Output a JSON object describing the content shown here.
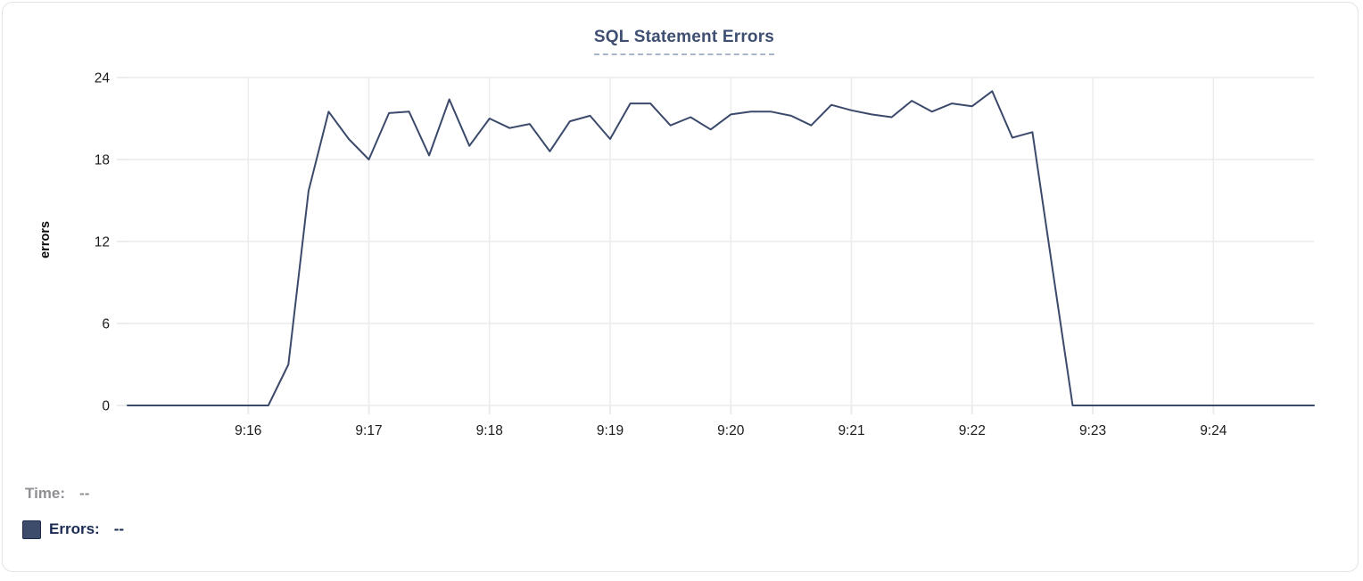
{
  "card": {
    "title_underline_color": "#a9b5c9",
    "title_color": "#3e4f71",
    "border_color": "#e3e3e6"
  },
  "legend": {
    "time_label": "Time:",
    "time_value": "--",
    "time_color": "#8e8e93",
    "errors_label": "Errors:",
    "errors_value": "--",
    "errors_color": "#1b2a52",
    "swatch_color": "#3d4c6a"
  },
  "chart_data": {
    "type": "line",
    "title": "SQL Statement Errors",
    "xlabel": "",
    "ylabel": "errors",
    "ylim": [
      0,
      24
    ],
    "y_ticks": [
      0,
      6,
      12,
      18,
      24
    ],
    "x_ticks": [
      "9:16",
      "9:17",
      "9:18",
      "9:19",
      "9:20",
      "9:21",
      "9:22",
      "9:23",
      "9:24"
    ],
    "xlim": [
      "9:15:00",
      "9:24:50"
    ],
    "grid": true,
    "legend_position": "bottom-left",
    "colors": {
      "grid": "#ececec",
      "tick_text": "#1c1c1e",
      "line": "#3b4a6b"
    },
    "series": [
      {
        "name": "Errors",
        "color": "#3b4a6b",
        "points": [
          [
            "9:15:00",
            0
          ],
          [
            "9:15:10",
            0
          ],
          [
            "9:15:20",
            0
          ],
          [
            "9:15:30",
            0
          ],
          [
            "9:15:40",
            0
          ],
          [
            "9:15:50",
            0
          ],
          [
            "9:16:00",
            0
          ],
          [
            "9:16:10",
            0
          ],
          [
            "9:16:20",
            3
          ],
          [
            "9:16:30",
            15.7
          ],
          [
            "9:16:40",
            21.5
          ],
          [
            "9:16:50",
            19.5
          ],
          [
            "9:17:00",
            18
          ],
          [
            "9:17:10",
            21.4
          ],
          [
            "9:17:20",
            21.5
          ],
          [
            "9:17:30",
            18.3
          ],
          [
            "9:17:40",
            22.4
          ],
          [
            "9:17:50",
            19
          ],
          [
            "9:18:00",
            21
          ],
          [
            "9:18:10",
            20.3
          ],
          [
            "9:18:20",
            20.6
          ],
          [
            "9:18:30",
            18.6
          ],
          [
            "9:18:40",
            20.8
          ],
          [
            "9:18:50",
            21.2
          ],
          [
            "9:19:00",
            19.5
          ],
          [
            "9:19:10",
            22.1
          ],
          [
            "9:19:20",
            22.1
          ],
          [
            "9:19:30",
            20.5
          ],
          [
            "9:19:40",
            21.1
          ],
          [
            "9:19:50",
            20.2
          ],
          [
            "9:20:00",
            21.3
          ],
          [
            "9:20:10",
            21.5
          ],
          [
            "9:20:20",
            21.5
          ],
          [
            "9:20:30",
            21.2
          ],
          [
            "9:20:40",
            20.5
          ],
          [
            "9:20:50",
            22
          ],
          [
            "9:21:00",
            21.6
          ],
          [
            "9:21:10",
            21.3
          ],
          [
            "9:21:20",
            21.1
          ],
          [
            "9:21:30",
            22.3
          ],
          [
            "9:21:40",
            21.5
          ],
          [
            "9:21:50",
            22.1
          ],
          [
            "9:22:00",
            21.9
          ],
          [
            "9:22:10",
            23
          ],
          [
            "9:22:20",
            19.6
          ],
          [
            "9:22:30",
            20
          ],
          [
            "9:22:40",
            10
          ],
          [
            "9:22:50",
            0
          ],
          [
            "9:23:00",
            0
          ],
          [
            "9:23:10",
            0
          ],
          [
            "9:23:20",
            0
          ],
          [
            "9:23:30",
            0
          ],
          [
            "9:23:40",
            0
          ],
          [
            "9:23:50",
            0
          ],
          [
            "9:24:00",
            0
          ],
          [
            "9:24:10",
            0
          ],
          [
            "9:24:20",
            0
          ],
          [
            "9:24:30",
            0
          ],
          [
            "9:24:40",
            0
          ],
          [
            "9:24:50",
            0
          ]
        ]
      }
    ]
  }
}
